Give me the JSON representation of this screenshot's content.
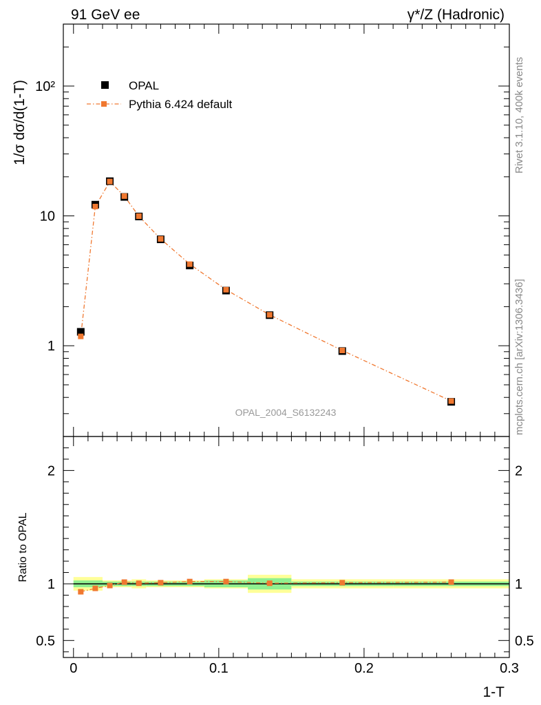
{
  "header": {
    "left": "91 GeV ee",
    "right": "γ*/Z (Hadronic)"
  },
  "side_labels": {
    "rivet": "Rivet 3.1.10,  400k events",
    "mcplots": "mcplots.cern.ch [arXiv:1306.3436]"
  },
  "analysis_label": "OPAL_2004_S6132243",
  "colors": {
    "data": "#000000",
    "mc": "#f07830",
    "band_inner": "#90f090",
    "band_outer": "#ffff99",
    "side_text": "#888888"
  },
  "chart_data": [
    {
      "type": "scatter",
      "panel": "main",
      "ylabel": "1/σ dσ/d(1-T)",
      "yscale": "log",
      "ylim": [
        0.2,
        300
      ],
      "xlim": [
        -0.007,
        0.3
      ],
      "y_tick_labels": [
        "1",
        "10",
        "10²"
      ],
      "legend_position": "top-left",
      "series": [
        {
          "name": "OPAL",
          "x": [
            0.005,
            0.015,
            0.025,
            0.035,
            0.045,
            0.06,
            0.08,
            0.105,
            0.135,
            0.185,
            0.26
          ],
          "y": [
            1.28,
            12.2,
            18.5,
            14.0,
            9.9,
            6.6,
            4.15,
            2.66,
            1.72,
            0.91,
            0.37
          ]
        },
        {
          "name": "Pythia 6.424 default",
          "x": [
            0.005,
            0.015,
            0.025,
            0.035,
            0.045,
            0.06,
            0.08,
            0.105,
            0.135,
            0.185,
            0.26
          ],
          "y": [
            1.18,
            11.8,
            18.4,
            14.2,
            9.95,
            6.65,
            4.25,
            2.7,
            1.73,
            0.92,
            0.375
          ]
        }
      ]
    },
    {
      "type": "line",
      "panel": "ratio",
      "xlabel": "1-T",
      "ylabel": "Ratio to OPAL",
      "xlim": [
        -0.007,
        0.3
      ],
      "ylim": [
        0.35,
        2.3
      ],
      "x_tick_labels": [
        "0",
        "0.1",
        "0.2",
        "0.3"
      ],
      "y_tick_labels": [
        "0.5",
        "1",
        "2"
      ],
      "series": [
        {
          "name": "Pythia 6.424 default",
          "x": [
            0.005,
            0.015,
            0.025,
            0.035,
            0.045,
            0.06,
            0.08,
            0.105,
            0.135,
            0.185,
            0.26
          ],
          "y": [
            0.93,
            0.96,
            0.985,
            1.015,
            1.005,
            1.01,
            1.02,
            1.02,
            1.005,
            1.01,
            1.015
          ]
        }
      ],
      "data_uncertainty_bands": [
        {
          "x0": 0.0,
          "x1": 0.02,
          "inner": [
            0.97,
            1.03
          ],
          "outer": [
            0.94,
            1.06
          ]
        },
        {
          "x0": 0.02,
          "x1": 0.03,
          "inner": [
            0.98,
            1.02
          ],
          "outer": [
            0.97,
            1.03
          ]
        },
        {
          "x0": 0.03,
          "x1": 0.04,
          "inner": [
            0.98,
            1.02
          ],
          "outer": [
            0.97,
            1.03
          ]
        },
        {
          "x0": 0.04,
          "x1": 0.05,
          "inner": [
            0.98,
            1.02
          ],
          "outer": [
            0.96,
            1.04
          ]
        },
        {
          "x0": 0.05,
          "x1": 0.07,
          "inner": [
            0.98,
            1.02
          ],
          "outer": [
            0.97,
            1.03
          ]
        },
        {
          "x0": 0.07,
          "x1": 0.09,
          "inner": [
            0.98,
            1.02
          ],
          "outer": [
            0.97,
            1.03
          ]
        },
        {
          "x0": 0.09,
          "x1": 0.12,
          "inner": [
            0.97,
            1.03
          ],
          "outer": [
            0.96,
            1.04
          ]
        },
        {
          "x0": 0.12,
          "x1": 0.15,
          "inner": [
            0.95,
            1.05
          ],
          "outer": [
            0.92,
            1.08
          ]
        },
        {
          "x0": 0.15,
          "x1": 0.22,
          "inner": [
            0.98,
            1.02
          ],
          "outer": [
            0.96,
            1.04
          ]
        },
        {
          "x0": 0.22,
          "x1": 0.3,
          "inner": [
            0.98,
            1.02
          ],
          "outer": [
            0.96,
            1.04
          ]
        }
      ]
    }
  ]
}
